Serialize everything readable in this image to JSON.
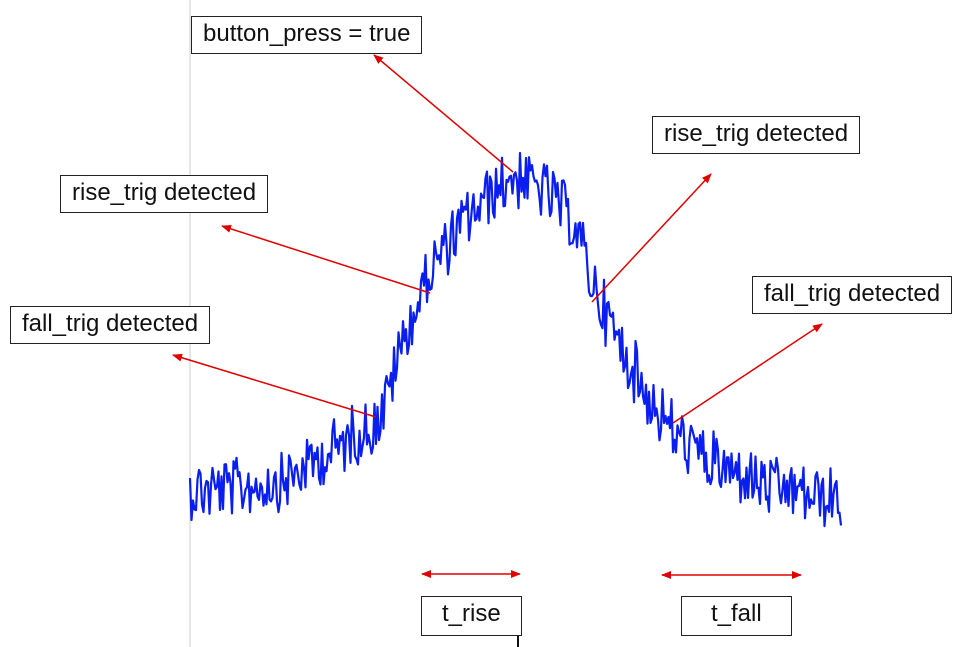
{
  "labels": {
    "button_press": "button_press = true",
    "rise_trig_left": "rise_trig detected",
    "rise_trig_right": "rise_trig detected",
    "fall_trig_left": "fall_trig detected",
    "fall_trig_right": "fall_trig detected",
    "t_rise": "t_rise",
    "t_fall": "t_fall"
  },
  "colors": {
    "signal": "#0a1ef0",
    "arrow": "#e00000",
    "axis": "#cccccc",
    "box_border": "#222222"
  }
}
